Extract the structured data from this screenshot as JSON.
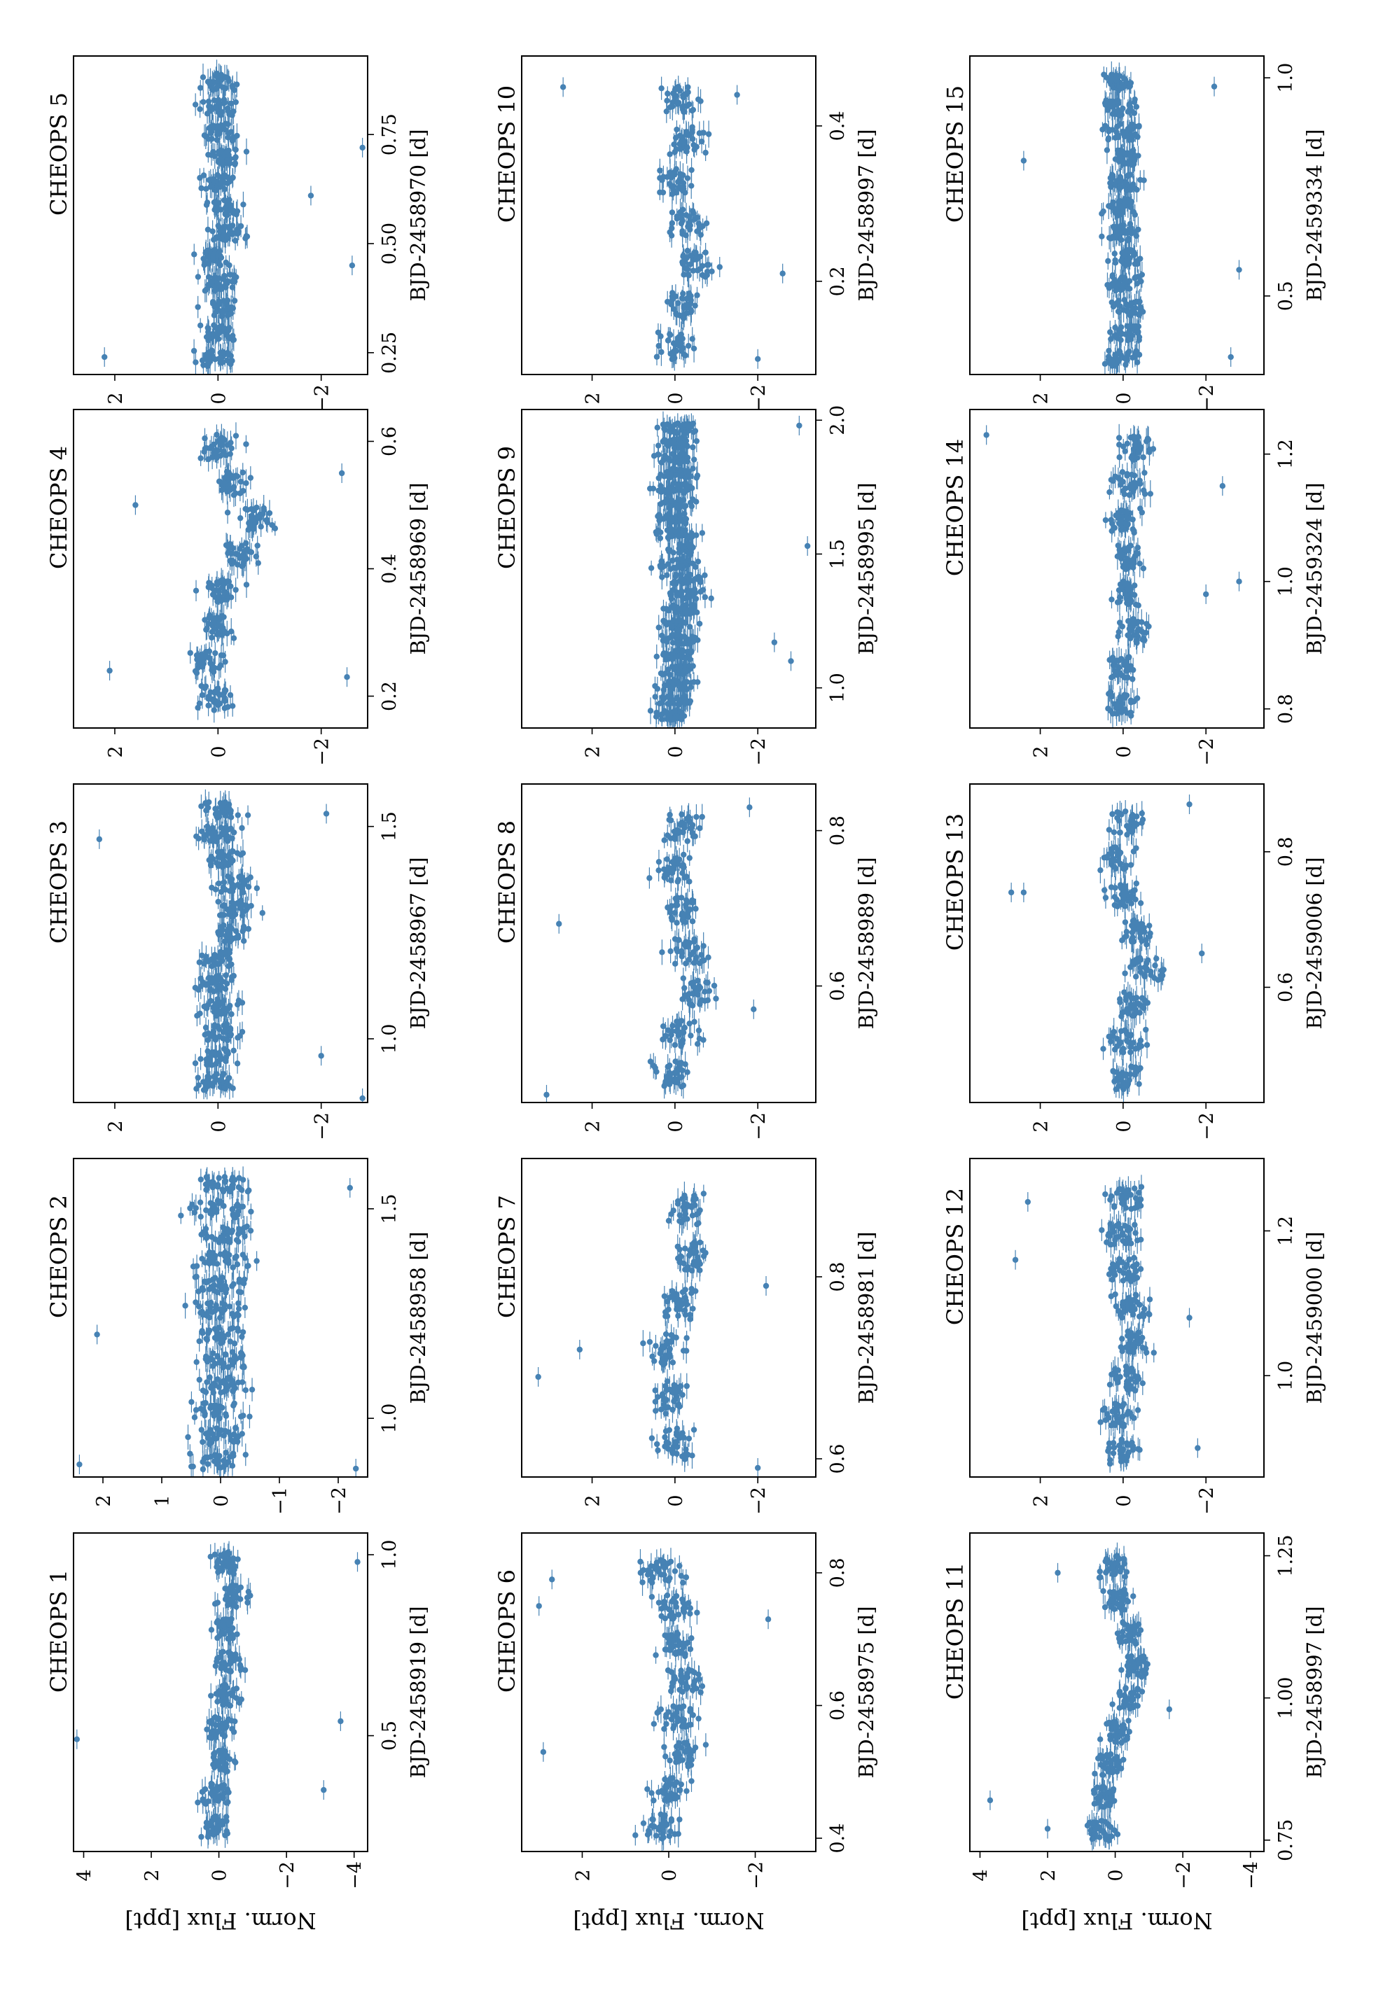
{
  "figure": {
    "ylabel": "Norm. Flux [ppt]",
    "point_color": "#4682b4",
    "axis_color": "#000000",
    "background": "#ffffff",
    "orientation": "rotated-90-ccw"
  },
  "chart_data": [
    {
      "type": "scatter",
      "title": "CHEOPS 1",
      "xlabel": "BJD-2458919 [d]",
      "xlim": [
        0.18,
        1.06
      ],
      "xticks": [
        0.5,
        1.0
      ],
      "xtick_labels": [
        "0.5",
        "1.0"
      ],
      "ylim": [
        -4.4,
        4.3
      ],
      "yticks": [
        4,
        2,
        0,
        -2,
        -4
      ],
      "ytick_labels": [
        "4",
        "2",
        "0",
        "−2",
        "−4"
      ],
      "show_ylabel": true,
      "x_start": 0.22,
      "x_end": 1.04,
      "n_orbits": 9,
      "trend": [
        0.1,
        0.1,
        -0.1,
        0.0,
        -0.2,
        -0.3,
        -0.2,
        -0.4,
        -0.2,
        0.0
      ],
      "spread": 0.55,
      "outliers": [
        [
          0.49,
          4.2
        ],
        [
          0.35,
          -3.1
        ],
        [
          0.54,
          -3.6
        ],
        [
          0.98,
          -4.1
        ]
      ]
    },
    {
      "type": "scatter",
      "title": "CHEOPS 2",
      "xlabel": "BJD-2458958 [d]",
      "xlim": [
        0.86,
        1.62
      ],
      "xticks": [
        1.0,
        1.5
      ],
      "xtick_labels": [
        "1.0",
        "1.5"
      ],
      "ylim": [
        -2.5,
        2.5
      ],
      "yticks": [
        2,
        1,
        0,
        -1,
        -2
      ],
      "ytick_labels": [
        "2",
        "1",
        "0",
        "−1",
        "−2"
      ],
      "show_ylabel": false,
      "x_start": 0.88,
      "x_end": 1.6,
      "n_orbits": 12,
      "trend": [
        0.1,
        0.0,
        0.0,
        -0.1,
        -0.1,
        0.0,
        0.1,
        0.0,
        -0.1,
        0.0,
        0.0
      ],
      "spread": 0.6,
      "outliers": [
        [
          0.89,
          2.4
        ],
        [
          1.2,
          2.1
        ],
        [
          0.88,
          -2.3
        ],
        [
          1.55,
          -2.2
        ]
      ]
    },
    {
      "type": "scatter",
      "title": "CHEOPS 3",
      "xlabel": "BJD-2458967 [d]",
      "xlim": [
        0.85,
        1.6
      ],
      "xticks": [
        1.0,
        1.5
      ],
      "xtick_labels": [
        "1.0",
        "1.5"
      ],
      "ylim": [
        -2.9,
        2.8
      ],
      "yticks": [
        2,
        0,
        -2
      ],
      "ytick_labels": [
        "2",
        "0",
        "−2"
      ],
      "show_ylabel": false,
      "x_start": 0.88,
      "x_end": 1.58,
      "n_orbits": 12,
      "trend": [
        0.1,
        0.0,
        -0.1,
        0.0,
        0.1,
        0.0,
        -0.2,
        -0.4,
        -0.3,
        -0.1,
        0.0
      ],
      "spread": 0.5,
      "outliers": [
        [
          1.47,
          2.3
        ],
        [
          1.53,
          -2.1
        ],
        [
          0.96,
          -2.0
        ],
        [
          0.86,
          -2.8
        ]
      ]
    },
    {
      "type": "scatter",
      "title": "CHEOPS 4",
      "xlabel": "BJD-2458969 [d]",
      "xlim": [
        0.15,
        0.65
      ],
      "xticks": [
        0.2,
        0.4,
        0.6
      ],
      "xtick_labels": [
        "0.2",
        "0.4",
        "0.6"
      ],
      "ylim": [
        -2.9,
        2.8
      ],
      "yticks": [
        2,
        0,
        -2
      ],
      "ytick_labels": [
        "2",
        "0",
        "−2"
      ],
      "show_ylabel": false,
      "x_start": 0.18,
      "x_end": 0.63,
      "n_orbits": 8,
      "trend": [
        0.1,
        0.2,
        0.0,
        -0.1,
        -0.5,
        -0.7,
        -0.3,
        0.0,
        0.1
      ],
      "spread": 0.45,
      "outliers": [
        [
          0.24,
          2.1
        ],
        [
          0.5,
          1.6
        ],
        [
          0.23,
          -2.5
        ],
        [
          0.55,
          -2.4
        ]
      ]
    },
    {
      "type": "scatter",
      "title": "CHEOPS 5",
      "xlabel": "BJD-2458970 [d]",
      "xlim": [
        0.2,
        0.93
      ],
      "xticks": [
        0.25,
        0.5,
        0.75
      ],
      "xtick_labels": [
        "0.25",
        "0.50",
        "0.75"
      ],
      "ylim": [
        -2.9,
        2.8
      ],
      "yticks": [
        2,
        0,
        -2
      ],
      "ytick_labels": [
        "2",
        "0",
        "−2"
      ],
      "show_ylabel": false,
      "x_start": 0.22,
      "x_end": 0.91,
      "n_orbits": 12,
      "trend": [
        0.1,
        0.0,
        -0.1,
        0.0,
        0.1,
        -0.2,
        -0.1,
        0.0,
        -0.1,
        0.0,
        0.0
      ],
      "spread": 0.45,
      "outliers": [
        [
          0.24,
          2.2
        ],
        [
          0.45,
          -2.6
        ],
        [
          0.72,
          -2.8
        ],
        [
          0.61,
          -1.8
        ]
      ]
    },
    {
      "type": "scatter",
      "title": "CHEOPS 6",
      "xlabel": "BJD-2458975 [d]",
      "xlim": [
        0.38,
        0.86
      ],
      "xticks": [
        0.4,
        0.6,
        0.8
      ],
      "xtick_labels": [
        "0.4",
        "0.6",
        "0.8"
      ],
      "ylim": [
        -3.4,
        3.4
      ],
      "yticks": [
        2,
        0,
        -2
      ],
      "ytick_labels": [
        "2",
        "0",
        "−2"
      ],
      "show_ylabel": true,
      "x_start": 0.4,
      "x_end": 0.84,
      "n_orbits": 8,
      "trend": [
        0.2,
        0.0,
        -0.3,
        -0.2,
        -0.4,
        -0.2,
        -0.1,
        0.2,
        0.1
      ],
      "spread": 0.6,
      "outliers": [
        [
          0.53,
          2.9
        ],
        [
          0.75,
          3.0
        ],
        [
          0.79,
          2.7
        ],
        [
          0.73,
          -2.3
        ]
      ]
    },
    {
      "type": "scatter",
      "title": "CHEOPS 7",
      "xlabel": "BJD-2458981 [d]",
      "xlim": [
        0.58,
        0.93
      ],
      "xticks": [
        0.6,
        0.8
      ],
      "xtick_labels": [
        "0.6",
        "0.8"
      ],
      "ylim": [
        -3.4,
        3.7
      ],
      "yticks": [
        2,
        0,
        -2
      ],
      "ytick_labels": [
        "2",
        "0",
        "−2"
      ],
      "show_ylabel": false,
      "x_start": 0.6,
      "x_end": 0.91,
      "n_orbits": 6,
      "trend": [
        0.0,
        0.1,
        0.2,
        -0.1,
        -0.4,
        -0.3,
        0.0
      ],
      "spread": 0.55,
      "outliers": [
        [
          0.69,
          3.3
        ],
        [
          0.72,
          2.3
        ],
        [
          0.59,
          -2.0
        ],
        [
          0.79,
          -2.2
        ]
      ]
    },
    {
      "type": "scatter",
      "title": "CHEOPS 8",
      "xlabel": "BJD-2458989 [d]",
      "xlim": [
        0.45,
        0.86
      ],
      "xticks": [
        0.6,
        0.8
      ],
      "xtick_labels": [
        "0.6",
        "0.8"
      ],
      "ylim": [
        -3.4,
        3.7
      ],
      "yticks": [
        2,
        0,
        -2
      ],
      "ytick_labels": [
        "2",
        "0",
        "−2"
      ],
      "show_ylabel": false,
      "x_start": 0.47,
      "x_end": 0.84,
      "n_orbits": 7,
      "trend": [
        0.1,
        -0.2,
        -0.5,
        -0.3,
        -0.1,
        0.0,
        -0.2,
        0.0
      ],
      "spread": 0.6,
      "outliers": [
        [
          0.46,
          3.1
        ],
        [
          0.68,
          2.8
        ],
        [
          0.57,
          -1.9
        ],
        [
          0.83,
          -1.8
        ]
      ]
    },
    {
      "type": "scatter",
      "title": "CHEOPS 9",
      "xlabel": "BJD-2458995 [d]",
      "xlim": [
        0.85,
        2.04
      ],
      "xticks": [
        1.0,
        1.5,
        2.0
      ],
      "xtick_labels": [
        "1.0",
        "1.5",
        "2.0"
      ],
      "ylim": [
        -3.4,
        3.7
      ],
      "yticks": [
        2,
        0,
        -2
      ],
      "ytick_labels": [
        "2",
        "0",
        "−2"
      ],
      "show_ylabel": false,
      "x_start": 0.88,
      "x_end": 2.01,
      "n_orbits": 20,
      "trend": [
        0.1,
        0.0,
        0.0,
        -0.1,
        0.0,
        -0.1,
        0.0,
        -0.2,
        -0.3,
        -0.2,
        -0.1,
        -0.2,
        0.0,
        0.0,
        -0.1,
        0.0,
        -0.1,
        0.0,
        0.0,
        -0.1,
        0.0
      ],
      "spread": 0.6,
      "outliers": [
        [
          1.17,
          -2.4
        ],
        [
          1.53,
          -3.2
        ],
        [
          1.98,
          -3.0
        ],
        [
          1.1,
          -2.8
        ]
      ]
    },
    {
      "type": "scatter",
      "title": "CHEOPS 10",
      "xlabel": "BJD-2458997 [d]",
      "xlim": [
        0.08,
        0.49
      ],
      "xticks": [
        0.2,
        0.4
      ],
      "xtick_labels": [
        "0.2",
        "0.4"
      ],
      "ylim": [
        -3.4,
        3.7
      ],
      "yticks": [
        2,
        0,
        -2
      ],
      "ytick_labels": [
        "2",
        "0",
        "−2"
      ],
      "show_ylabel": false,
      "x_start": 0.1,
      "x_end": 0.47,
      "n_orbits": 7,
      "trend": [
        0.0,
        -0.2,
        -0.5,
        -0.3,
        0.0,
        -0.3,
        -0.1,
        0.5
      ],
      "spread": 0.6,
      "outliers": [
        [
          0.45,
          2.7
        ],
        [
          0.21,
          -2.6
        ],
        [
          0.44,
          -1.5
        ],
        [
          0.1,
          -2.0
        ]
      ]
    },
    {
      "type": "scatter",
      "title": "CHEOPS 11",
      "xlabel": "BJD-2458997 [d]",
      "xlim": [
        0.73,
        1.29
      ],
      "xticks": [
        0.75,
        1.0,
        1.25
      ],
      "xtick_labels": [
        "0.75",
        "1.00",
        "1.25"
      ],
      "ylim": [
        -4.4,
        4.3
      ],
      "yticks": [
        4,
        2,
        0,
        -2,
        -4
      ],
      "ytick_labels": [
        "4",
        "2",
        "0",
        "−2",
        "−4"
      ],
      "show_ylabel": true,
      "x_start": 0.75,
      "x_end": 1.27,
      "n_orbits": 9,
      "trend": [
        0.4,
        0.3,
        0.2,
        -0.1,
        -0.4,
        -0.6,
        -0.4,
        -0.1,
        0.1,
        0.0
      ],
      "spread": 0.5,
      "outliers": [
        [
          0.82,
          3.7
        ],
        [
          0.77,
          2.0
        ],
        [
          1.22,
          1.7
        ],
        [
          0.98,
          -1.6
        ]
      ]
    },
    {
      "type": "scatter",
      "title": "CHEOPS 12",
      "xlabel": "BJD-2459000 [d]",
      "xlim": [
        0.86,
        1.3
      ],
      "xticks": [
        1.0,
        1.2
      ],
      "xtick_labels": [
        "1.0",
        "1.2"
      ],
      "ylim": [
        -3.4,
        3.7
      ],
      "yticks": [
        2,
        0,
        -2
      ],
      "ytick_labels": [
        "2",
        "0",
        "−2"
      ],
      "show_ylabel": false,
      "x_start": 0.88,
      "x_end": 1.28,
      "n_orbits": 8,
      "trend": [
        0.0,
        0.1,
        -0.1,
        -0.3,
        -0.2,
        -0.1,
        0.1,
        -0.1,
        0.0
      ],
      "spread": 0.55,
      "outliers": [
        [
          1.16,
          2.6
        ],
        [
          1.24,
          2.3
        ],
        [
          1.08,
          -1.6
        ],
        [
          0.9,
          -1.8
        ]
      ]
    },
    {
      "type": "scatter",
      "title": "CHEOPS 13",
      "xlabel": "BJD-2459006 [d]",
      "xlim": [
        0.43,
        0.9
      ],
      "xticks": [
        0.6,
        0.8
      ],
      "xtick_labels": [
        "0.6",
        "0.8"
      ],
      "ylim": [
        -3.4,
        3.7
      ],
      "yticks": [
        2,
        0,
        -2
      ],
      "ytick_labels": [
        "2",
        "0",
        "−2"
      ],
      "show_ylabel": false,
      "x_start": 0.45,
      "x_end": 0.88,
      "n_orbits": 8,
      "trend": [
        0.0,
        -0.1,
        -0.2,
        -0.5,
        -0.3,
        0.0,
        0.2,
        -0.1,
        0.0
      ],
      "spread": 0.55,
      "outliers": [
        [
          0.74,
          2.7
        ],
        [
          0.74,
          2.4
        ],
        [
          0.65,
          -1.9
        ],
        [
          0.87,
          -1.6
        ]
      ]
    },
    {
      "type": "scatter",
      "title": "CHEOPS 14",
      "xlabel": "BJD-2459324 [d]",
      "xlim": [
        0.77,
        1.27
      ],
      "xticks": [
        0.8,
        1.0,
        1.2
      ],
      "xtick_labels": [
        "0.8",
        "1.0",
        "1.2"
      ],
      "ylim": [
        -3.4,
        3.7
      ],
      "yticks": [
        2,
        0,
        -2
      ],
      "ytick_labels": [
        "2",
        "0",
        "−2"
      ],
      "show_ylabel": false,
      "x_start": 0.79,
      "x_end": 1.25,
      "n_orbits": 8,
      "trend": [
        0.1,
        0.0,
        -0.2,
        -0.1,
        -0.1,
        0.0,
        -0.2,
        -0.3,
        -0.1
      ],
      "spread": 0.5,
      "outliers": [
        [
          1.23,
          3.3
        ],
        [
          1.15,
          -2.4
        ],
        [
          1.0,
          -2.8
        ],
        [
          0.98,
          -2.0
        ]
      ]
    },
    {
      "type": "scatter",
      "title": "CHEOPS 15",
      "xlabel": "BJD-2459334 [d]",
      "xlim": [
        0.32,
        1.05
      ],
      "xticks": [
        0.5,
        1.0
      ],
      "xtick_labels": [
        "0.5",
        "1.0"
      ],
      "ylim": [
        -3.4,
        3.7
      ],
      "yticks": [
        2,
        0,
        -2
      ],
      "ytick_labels": [
        "2",
        "0",
        "−2"
      ],
      "show_ylabel": false,
      "x_start": 0.34,
      "x_end": 1.03,
      "n_orbits": 12,
      "trend": [
        0.1,
        0.0,
        -0.1,
        0.0,
        -0.1,
        0.0,
        0.1,
        0.0,
        -0.1,
        0.0,
        0.1
      ],
      "spread": 0.55,
      "outliers": [
        [
          0.36,
          -2.6
        ],
        [
          0.56,
          -2.8
        ],
        [
          0.98,
          -2.2
        ],
        [
          0.81,
          2.4
        ]
      ]
    }
  ]
}
